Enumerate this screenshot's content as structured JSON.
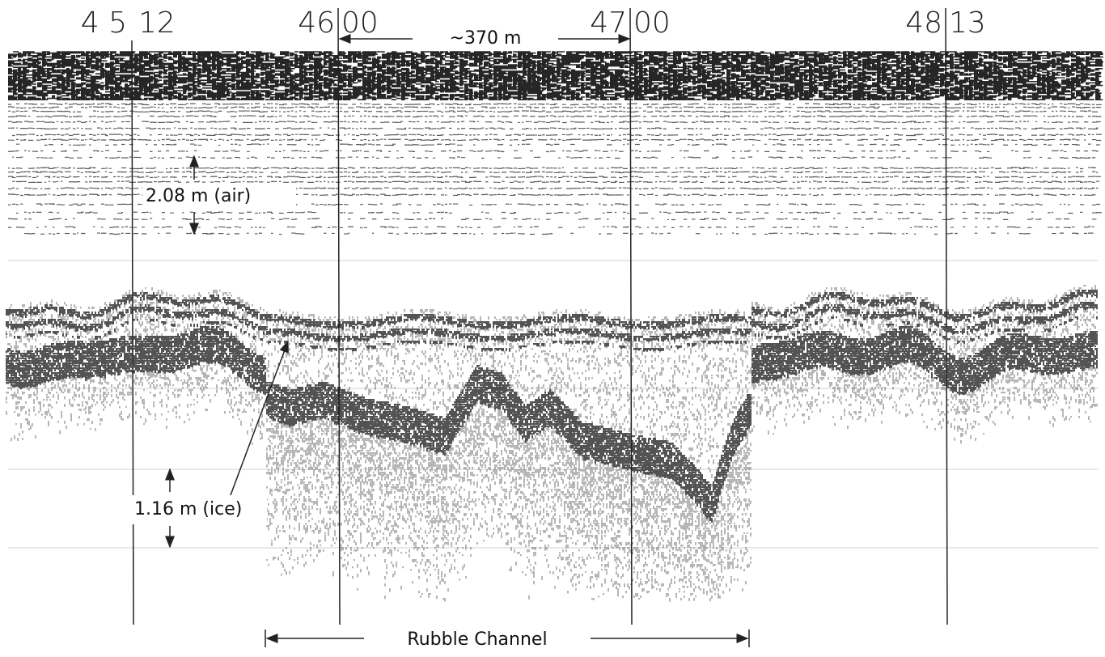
{
  "time_marks": [
    {
      "left": "4 5",
      "right": "12"
    },
    {
      "left": "46",
      "right": "00"
    },
    {
      "left": "47",
      "right": "00"
    },
    {
      "left": "48",
      "right": "13"
    }
  ],
  "scale_label": "~370 m",
  "air_label": "2.08 m (air)",
  "ice_label": "1.16 m (ice)",
  "channel_label": "Rubble Channel"
}
